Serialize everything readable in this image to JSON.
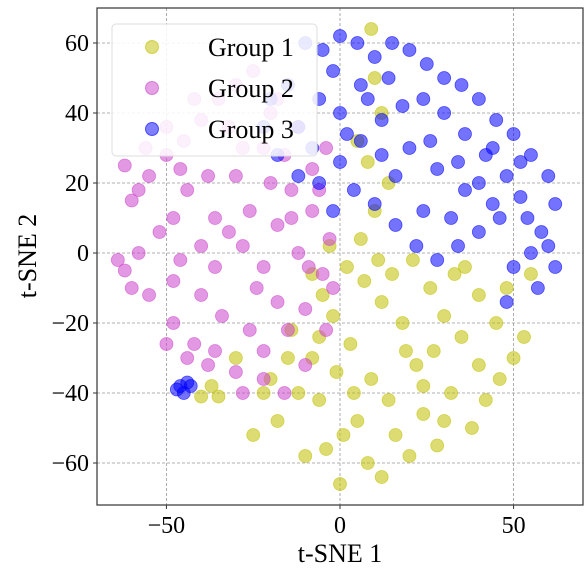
{
  "chart_data": {
    "type": "scatter",
    "xlabel": "t-SNE 1",
    "ylabel": "t-SNE 2",
    "xlim": [
      -70,
      70
    ],
    "ylim": [
      -72,
      70
    ],
    "xticks": [
      -50,
      0,
      50
    ],
    "yticks": [
      -60,
      -40,
      -20,
      0,
      20,
      40,
      60
    ],
    "xtick_labels": [
      "−50",
      "0",
      "50"
    ],
    "ytick_labels": [
      "−60",
      "−40",
      "−20",
      "0",
      "20",
      "40",
      "60"
    ],
    "grid": true,
    "legend_position": "top-left",
    "series": [
      {
        "name": "Group 1",
        "color": "#bfbf00",
        "points": [
          [
            7,
            -8
          ],
          [
            12,
            -14
          ],
          [
            18,
            -20
          ],
          [
            3,
            -26
          ],
          [
            22,
            -32
          ],
          [
            9,
            -36
          ],
          [
            14,
            -42
          ],
          [
            26,
            -10
          ],
          [
            30,
            -18
          ],
          [
            -2,
            -18
          ],
          [
            5,
            -48
          ],
          [
            16,
            -52
          ],
          [
            24,
            -46
          ],
          [
            35,
            -24
          ],
          [
            40,
            -32
          ],
          [
            -8,
            -30
          ],
          [
            -12,
            -40
          ],
          [
            -18,
            -48
          ],
          [
            -4,
            -56
          ],
          [
            8,
            -60
          ],
          [
            20,
            -58
          ],
          [
            32,
            -40
          ],
          [
            45,
            -20
          ],
          [
            48,
            -10
          ],
          [
            50,
            -30
          ],
          [
            2,
            -4
          ],
          [
            -5,
            -12
          ],
          [
            11,
            -2
          ],
          [
            -6,
            -42
          ],
          [
            -15,
            -30
          ],
          [
            -22,
            -40
          ],
          [
            -25,
            -52
          ],
          [
            -10,
            -58
          ],
          [
            0,
            -66
          ],
          [
            12,
            -64
          ],
          [
            28,
            -55
          ],
          [
            38,
            -50
          ],
          [
            42,
            -42
          ],
          [
            46,
            -36
          ],
          [
            53,
            -24
          ],
          [
            55,
            -6
          ],
          [
            -1,
            -34
          ],
          [
            4,
            -40
          ],
          [
            19,
            -28
          ],
          [
            27,
            -28
          ],
          [
            33,
            -6
          ],
          [
            15,
            -6
          ],
          [
            -3,
            2
          ],
          [
            -8,
            -6
          ],
          [
            6,
            4
          ],
          [
            10,
            12
          ],
          [
            14,
            20
          ],
          [
            8,
            26
          ],
          [
            5,
            32
          ],
          [
            12,
            40
          ],
          [
            10,
            50
          ],
          [
            9,
            64
          ],
          [
            -35,
            -41
          ],
          [
            -40,
            -41
          ],
          [
            -37,
            -38
          ],
          [
            -20,
            -36
          ],
          [
            -30,
            -30
          ],
          [
            40,
            -12
          ],
          [
            36,
            -4
          ],
          [
            21,
            -2
          ],
          [
            24,
            -38
          ],
          [
            -14,
            -22
          ],
          [
            30,
            -48
          ],
          [
            1,
            -52
          ],
          [
            -6,
            -24
          ]
        ]
      },
      {
        "name": "Group 2",
        "color": "#cc44cc",
        "points": [
          [
            -60,
            15
          ],
          [
            -55,
            22
          ],
          [
            -50,
            28
          ],
          [
            -45,
            32
          ],
          [
            -40,
            38
          ],
          [
            -35,
            44
          ],
          [
            -30,
            48
          ],
          [
            -25,
            52
          ],
          [
            -20,
            40
          ],
          [
            -28,
            30
          ],
          [
            -38,
            22
          ],
          [
            -48,
            10
          ],
          [
            -58,
            0
          ],
          [
            -62,
            -5
          ],
          [
            -55,
            -12
          ],
          [
            -48,
            -20
          ],
          [
            -42,
            -26
          ],
          [
            -38,
            -32
          ],
          [
            -30,
            -34
          ],
          [
            -22,
            -28
          ],
          [
            -15,
            -22
          ],
          [
            -10,
            -16
          ],
          [
            -5,
            -6
          ],
          [
            -3,
            4
          ],
          [
            -8,
            12
          ],
          [
            -14,
            18
          ],
          [
            -20,
            20
          ],
          [
            -26,
            12
          ],
          [
            -32,
            6
          ],
          [
            -36,
            -4
          ],
          [
            -40,
            -12
          ],
          [
            -46,
            -2
          ],
          [
            -52,
            6
          ],
          [
            -44,
            18
          ],
          [
            -30,
            22
          ],
          [
            -18,
            8
          ],
          [
            -12,
            0
          ],
          [
            -24,
            -10
          ],
          [
            -34,
            -18
          ],
          [
            -26,
            -22
          ],
          [
            -18,
            -14
          ],
          [
            -8,
            24
          ],
          [
            -4,
            30
          ],
          [
            -12,
            36
          ],
          [
            -18,
            44
          ],
          [
            -32,
            36
          ],
          [
            -42,
            44
          ],
          [
            -50,
            36
          ],
          [
            -56,
            30
          ],
          [
            -62,
            25
          ],
          [
            -64,
            -2
          ],
          [
            -60,
            -10
          ],
          [
            -50,
            -26
          ],
          [
            -44,
            -30
          ],
          [
            -36,
            -28
          ],
          [
            -28,
            -40
          ],
          [
            -22,
            -36
          ],
          [
            -16,
            -40
          ],
          [
            -10,
            -32
          ],
          [
            -4,
            -22
          ],
          [
            -2,
            -10
          ],
          [
            -6,
            18
          ],
          [
            -16,
            28
          ],
          [
            -22,
            30
          ],
          [
            -48,
            -8
          ],
          [
            -58,
            18
          ],
          [
            -36,
            10
          ],
          [
            -28,
            2
          ],
          [
            -22,
            -4
          ],
          [
            -14,
            10
          ],
          [
            -9,
            -4
          ],
          [
            -40,
            2
          ],
          [
            -46,
            24
          ]
        ]
      },
      {
        "name": "Group 3",
        "color": "#0000ff",
        "points": [
          [
            -10,
            60
          ],
          [
            -5,
            58
          ],
          [
            0,
            62
          ],
          [
            5,
            60
          ],
          [
            10,
            56
          ],
          [
            15,
            60
          ],
          [
            20,
            58
          ],
          [
            25,
            54
          ],
          [
            30,
            50
          ],
          [
            35,
            48
          ],
          [
            40,
            44
          ],
          [
            45,
            38
          ],
          [
            50,
            34
          ],
          [
            55,
            28
          ],
          [
            60,
            22
          ],
          [
            62,
            14
          ],
          [
            58,
            6
          ],
          [
            55,
            0
          ],
          [
            50,
            -4
          ],
          [
            -15,
            48
          ],
          [
            -20,
            44
          ],
          [
            -22,
            36
          ],
          [
            -18,
            28
          ],
          [
            -12,
            22
          ],
          [
            -6,
            20
          ],
          [
            0,
            26
          ],
          [
            6,
            32
          ],
          [
            12,
            38
          ],
          [
            18,
            42
          ],
          [
            24,
            44
          ],
          [
            30,
            40
          ],
          [
            36,
            34
          ],
          [
            42,
            28
          ],
          [
            48,
            22
          ],
          [
            52,
            16
          ],
          [
            46,
            10
          ],
          [
            40,
            6
          ],
          [
            34,
            2
          ],
          [
            28,
            -2
          ],
          [
            22,
            2
          ],
          [
            16,
            8
          ],
          [
            10,
            14
          ],
          [
            4,
            18
          ],
          [
            -2,
            12
          ],
          [
            0,
            40
          ],
          [
            6,
            48
          ],
          [
            -6,
            44
          ],
          [
            -12,
            36
          ],
          [
            -2,
            52
          ],
          [
            8,
            44
          ],
          [
            20,
            30
          ],
          [
            28,
            24
          ],
          [
            36,
            18
          ],
          [
            44,
            14
          ],
          [
            54,
            10
          ],
          [
            60,
            2
          ],
          [
            62,
            -4
          ],
          [
            57,
            -10
          ],
          [
            48,
            -14
          ],
          [
            16,
            22
          ],
          [
            24,
            12
          ],
          [
            32,
            10
          ],
          [
            40,
            20
          ],
          [
            12,
            28
          ],
          [
            2,
            34
          ],
          [
            -8,
            30
          ],
          [
            14,
            50
          ],
          [
            26,
            32
          ],
          [
            34,
            26
          ],
          [
            44,
            30
          ],
          [
            52,
            26
          ],
          [
            -46,
            -38
          ],
          [
            -44,
            -37
          ],
          [
            -45,
            -40
          ],
          [
            -47,
            -39
          ],
          [
            -43,
            -38
          ]
        ]
      }
    ]
  }
}
